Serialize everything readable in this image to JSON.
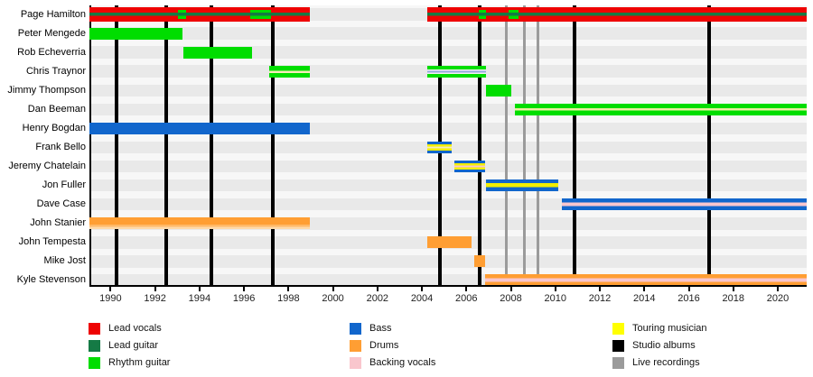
{
  "chart_data": {
    "type": "timeline",
    "description": "Band members timeline (gantt-style) with vertical lines marking studio albums and live recordings",
    "axis": {
      "year_start": 1989.05,
      "year_end": 2021.3,
      "tick_years": [
        1990,
        1992,
        1994,
        1996,
        1998,
        2000,
        2002,
        2004,
        2006,
        2008,
        2010,
        2012,
        2014,
        2016,
        2018,
        2020
      ]
    },
    "members": [
      "Page Hamilton",
      "Peter Mengede",
      "Rob Echeverria",
      "Chris Traynor",
      "Jimmy Thompson",
      "Dan Beeman",
      "Henry Bogdan",
      "Frank Bello",
      "Jeremy Chatelain",
      "Jon Fuller",
      "Dave Case",
      "John Stanier",
      "John Tempesta",
      "Mike Jost",
      "Kyle Stevenson"
    ],
    "colors": {
      "lead_vocals": "#ee0202",
      "lead_guitar": "#157a45",
      "rhythm_guitar": "#00dd00",
      "bass": "#1166cc",
      "drums": "#ff9e33",
      "backing_vocals": "#f9c6cd",
      "touring_musician": "#ffff00",
      "studio_albums": "#000000",
      "live_recordings": "#9b9b9b"
    },
    "bars": [
      {
        "member": 0,
        "start": 1989.05,
        "end": 1998.95,
        "role": "lead vocals + lead guitar",
        "stripes": [
          [
            "#ee0202",
            6
          ],
          [
            "#157a45",
            3.5
          ],
          [
            "#ee0202",
            6
          ]
        ]
      },
      {
        "member": 0,
        "start": 2004.25,
        "end": 2021.3,
        "role": "lead vocals + lead guitar",
        "stripes": [
          [
            "#ee0202",
            6
          ],
          [
            "#157a45",
            3.5
          ],
          [
            "#ee0202",
            6
          ]
        ]
      },
      {
        "member": 0,
        "start": 1993.05,
        "end": 1993.4,
        "role": "rhythm guitar segment",
        "stripes": [
          [
            "#00dd00",
            3
          ],
          [
            "#157a45",
            3.5
          ],
          [
            "#00dd00",
            3
          ]
        ]
      },
      {
        "member": 0,
        "start": 1996.3,
        "end": 1997.2,
        "role": "rhythm guitar segment",
        "stripes": [
          [
            "#00dd00",
            3
          ],
          [
            "#157a45",
            3.5
          ],
          [
            "#00dd00",
            3
          ]
        ]
      },
      {
        "member": 0,
        "start": 2006.55,
        "end": 2006.9,
        "role": "rhythm guitar segment",
        "stripes": [
          [
            "#00dd00",
            3
          ],
          [
            "#157a45",
            3.5
          ],
          [
            "#00dd00",
            3
          ]
        ]
      },
      {
        "member": 0,
        "start": 2007.9,
        "end": 2008.35,
        "role": "rhythm guitar segment",
        "stripes": [
          [
            "#00dd00",
            3
          ],
          [
            "#157a45",
            3.5
          ],
          [
            "#00dd00",
            3
          ]
        ]
      },
      {
        "member": 1,
        "start": 1989.05,
        "end": 1993.25,
        "role": "rhythm guitar",
        "stripes": [
          [
            "#00dd00",
            13
          ]
        ]
      },
      {
        "member": 2,
        "start": 1993.27,
        "end": 1996.37,
        "role": "rhythm guitar",
        "stripes": [
          [
            "#00dd00",
            13
          ]
        ]
      },
      {
        "member": 3,
        "start": 1997.15,
        "end": 1998.95,
        "role": "rhythm guitar (touring)",
        "stripes": [
          [
            "#00dd00",
            5.25
          ],
          [
            "#f6ecb8",
            2.5
          ],
          [
            "#00dd00",
            5.25
          ]
        ]
      },
      {
        "member": 3,
        "start": 2004.25,
        "end": 2006.9,
        "role": "rhythm guitar + bass",
        "stripes": [
          [
            "#00dd00",
            4
          ],
          [
            "#f2f2f2",
            1.5
          ],
          [
            "#93a8dc",
            2
          ],
          [
            "#f2f2f2",
            1.5
          ],
          [
            "#00dd00",
            4
          ]
        ]
      },
      {
        "member": 4,
        "start": 2006.88,
        "end": 2008.0,
        "role": "rhythm guitar",
        "stripes": [
          [
            "#00dd00",
            13
          ]
        ]
      },
      {
        "member": 5,
        "start": 2008.2,
        "end": 2021.3,
        "role": "rhythm guitar (touring)",
        "stripes": [
          [
            "#00dd00",
            5.25
          ],
          [
            "#eeefa2",
            2.5
          ],
          [
            "#00dd00",
            5.25
          ]
        ]
      },
      {
        "member": 6,
        "start": 1989.05,
        "end": 1998.95,
        "role": "bass",
        "stripes": [
          [
            "#1166cc",
            13
          ]
        ]
      },
      {
        "member": 7,
        "start": 2004.25,
        "end": 2005.35,
        "role": "bass (touring)",
        "stripes": [
          [
            "#1166cc",
            3
          ],
          [
            "#f2ee00",
            2.5
          ],
          [
            "#f6ecb8",
            2
          ],
          [
            "#f2ee00",
            2.5
          ],
          [
            "#1166cc",
            3
          ]
        ]
      },
      {
        "member": 8,
        "start": 2005.45,
        "end": 2006.85,
        "role": "bass (touring) + backing vocals",
        "stripes": [
          [
            "#1166cc",
            3
          ],
          [
            "#f2ee00",
            2.5
          ],
          [
            "#f9c6cd",
            2
          ],
          [
            "#f2ee00",
            2.5
          ],
          [
            "#1166cc",
            3
          ]
        ]
      },
      {
        "member": 9,
        "start": 2006.88,
        "end": 2010.15,
        "role": "bass (touring)",
        "stripes": [
          [
            "#1166cc",
            4.25
          ],
          [
            "#f2ee00",
            4.5
          ],
          [
            "#1166cc",
            4.25
          ]
        ]
      },
      {
        "member": 10,
        "start": 2010.3,
        "end": 2021.3,
        "role": "bass + backing vocals",
        "stripes": [
          [
            "#1166cc",
            4.5
          ],
          [
            "#f9c6cd",
            4
          ],
          [
            "#1166cc",
            4.5
          ]
        ]
      },
      {
        "member": 11,
        "start": 1989.05,
        "end": 1998.95,
        "role": "drums",
        "stripes": [
          [
            "#ff9e33",
            8
          ],
          [
            "#ffb968",
            2.5
          ],
          [
            "#ffd9a8",
            2.5
          ]
        ]
      },
      {
        "member": 12,
        "start": 2004.25,
        "end": 2006.25,
        "role": "drums",
        "stripes": [
          [
            "#ff9e33",
            13
          ]
        ]
      },
      {
        "member": 13,
        "start": 2006.35,
        "end": 2006.85,
        "role": "drums",
        "stripes": [
          [
            "#ff9e33",
            13
          ]
        ]
      },
      {
        "member": 14,
        "start": 2006.85,
        "end": 2021.3,
        "role": "drums + backing vocals",
        "stripes": [
          [
            "#ff9e33",
            4.5
          ],
          [
            "#f9c6cd",
            4
          ],
          [
            "#ff9e33",
            4.5
          ]
        ]
      }
    ],
    "album_years": [
      1990.25,
      1992.5,
      1994.55,
      1997.3,
      2004.8,
      2006.6,
      2010.85,
      2016.9
    ],
    "live_recording_years": [
      2007.78,
      2008.6,
      2009.2
    ],
    "legend": {
      "columns": [
        [
          {
            "label": "Lead vocals",
            "color": "#ee0202"
          },
          {
            "label": "Lead guitar",
            "color": "#157a45"
          },
          {
            "label": "Rhythm guitar",
            "color": "#00dd00"
          }
        ],
        [
          {
            "label": "Bass",
            "color": "#1166cc"
          },
          {
            "label": "Drums",
            "color": "#ff9e33"
          },
          {
            "label": "Backing vocals",
            "color": "#f9c6cd"
          }
        ],
        [
          {
            "label": "Touring musician",
            "color": "#ffff00"
          },
          {
            "label": "Studio albums",
            "color": "#000000"
          },
          {
            "label": "Live recordings",
            "color": "#9b9b9b"
          }
        ]
      ]
    }
  }
}
